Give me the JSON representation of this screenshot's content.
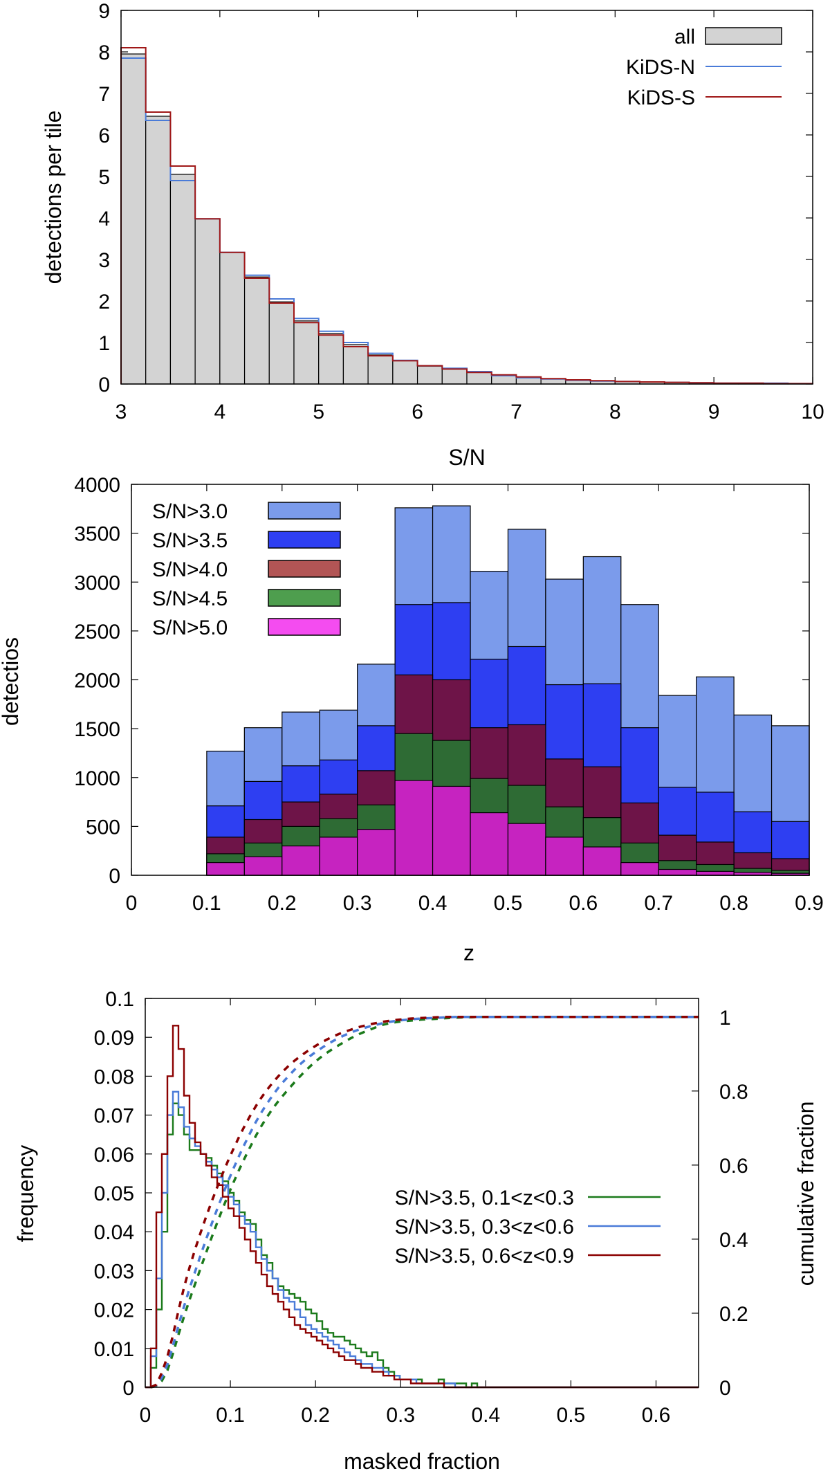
{
  "chart_data": [
    {
      "type": "bar",
      "panel": "top",
      "xlabel": "S/N",
      "ylabel": "detections per tile",
      "xlim": [
        3,
        10
      ],
      "ylim": [
        0,
        9
      ],
      "xticks": [
        "3",
        "4",
        "5",
        "6",
        "7",
        "8",
        "9",
        "10"
      ],
      "yticks": [
        "0",
        "1",
        "2",
        "3",
        "4",
        "5",
        "6",
        "7",
        "8",
        "9"
      ],
      "bin_width": 0.25,
      "bin_start": 3.0,
      "legend": {
        "placement": "top-right",
        "entries": [
          "all",
          "KiDS-N",
          "KiDS-S"
        ]
      },
      "series": [
        {
          "name": "all",
          "color": "#d3d3d3",
          "values": [
            7.95,
            6.45,
            5.05,
            3.98,
            3.17,
            2.58,
            1.98,
            1.52,
            1.22,
            0.95,
            0.7,
            0.56,
            0.43,
            0.37,
            0.29,
            0.2,
            0.16,
            0.12,
            0.09,
            0.07,
            0.06,
            0.05,
            0.04,
            0.03,
            0.02,
            0.02,
            0.02,
            0.01
          ]
        },
        {
          "name": "KiDS-N",
          "color": "#4a7bd8",
          "values": [
            7.85,
            6.35,
            4.9,
            3.98,
            3.17,
            2.62,
            2.05,
            1.58,
            1.27,
            1.0,
            0.74,
            0.57,
            0.44,
            0.38,
            0.3,
            0.2,
            0.15,
            0.12,
            0.09,
            0.07,
            0.06,
            0.05,
            0.04,
            0.03,
            0.02,
            0.02,
            0.02,
            0.01
          ]
        },
        {
          "name": "KiDS-S",
          "color": "#a01818",
          "values": [
            8.1,
            6.55,
            5.25,
            3.98,
            3.17,
            2.55,
            1.95,
            1.48,
            1.18,
            0.9,
            0.68,
            0.56,
            0.44,
            0.36,
            0.28,
            0.22,
            0.17,
            0.13,
            0.1,
            0.08,
            0.06,
            0.05,
            0.04,
            0.03,
            0.02,
            0.02,
            0.01,
            0.01
          ]
        }
      ]
    },
    {
      "type": "bar",
      "panel": "middle",
      "xlabel": "z",
      "ylabel": "detectios",
      "xlim": [
        0,
        0.9
      ],
      "ylim": [
        0,
        4000
      ],
      "xticks": [
        "0",
        "0.1",
        "0.2",
        "0.3",
        "0.4",
        "0.5",
        "0.6",
        "0.7",
        "0.8",
        "0.9"
      ],
      "yticks": [
        "0",
        "500",
        "1000",
        "1500",
        "2000",
        "2500",
        "3000",
        "3500",
        "4000"
      ],
      "bin_width": 0.05,
      "bin_start": 0.1,
      "legend": {
        "placement": "top-left"
      },
      "series": [
        {
          "name": "S/N>3.0",
          "color": "#7b9beb",
          "values": [
            1270,
            1510,
            1670,
            1690,
            2160,
            3760,
            3780,
            3110,
            3540,
            3030,
            3260,
            2770,
            1840,
            2030,
            1640,
            1530
          ]
        },
        {
          "name": "S/N>3.5",
          "color": "#2e3ff2",
          "values": [
            710,
            960,
            1120,
            1180,
            1530,
            2770,
            2790,
            2210,
            2340,
            1950,
            1960,
            1510,
            900,
            850,
            650,
            550
          ]
        },
        {
          "name": "S/N>4.0",
          "color": "#b25555",
          "values": [
            390,
            570,
            750,
            830,
            1070,
            2050,
            2000,
            1510,
            1540,
            1190,
            1110,
            740,
            410,
            340,
            230,
            170
          ]
        },
        {
          "name": "S/N>4.5",
          "color": "#4e9e4e",
          "values": [
            220,
            330,
            500,
            580,
            720,
            1450,
            1380,
            990,
            920,
            700,
            590,
            330,
            150,
            110,
            70,
            50
          ]
        },
        {
          "name": "S/N>5.0",
          "color": "#f44cf0",
          "values": [
            130,
            190,
            300,
            390,
            470,
            970,
            910,
            640,
            530,
            390,
            290,
            130,
            60,
            40,
            30,
            20
          ]
        }
      ],
      "overlap_colors": [
        "#7b9beb",
        "#2e3ff2",
        "#6e1448",
        "#2e6b34",
        "#c623c0"
      ]
    },
    {
      "type": "line",
      "panel": "bottom",
      "xlabel": "masked fraction",
      "ylabel": "frequency",
      "y2label": "cumulative fraction",
      "xlim": [
        0,
        0.65
      ],
      "ylim": [
        0,
        0.1
      ],
      "y2lim": [
        0,
        1.05
      ],
      "xticks": [
        "0",
        "0.1",
        "0.2",
        "0.3",
        "0.4",
        "0.5",
        "0.6"
      ],
      "yticks": [
        "0",
        "0.01",
        "0.02",
        "0.03",
        "0.04",
        "0.05",
        "0.06",
        "0.07",
        "0.08",
        "0.09",
        "0.1"
      ],
      "y2ticks": [
        "0",
        "0.2",
        "0.4",
        "0.6",
        "0.8",
        "1"
      ],
      "bin_width": 0.0065,
      "legend": {
        "placement": "middle-right"
      },
      "series": [
        {
          "name": "S/N>3.5, 0.1<z<0.3",
          "color": "#1b7a1b",
          "cum_scale": 48,
          "values": [
            0.0,
            0.005,
            0.02,
            0.04,
            0.065,
            0.073,
            0.07,
            0.065,
            0.061,
            0.061,
            0.06,
            0.059,
            0.057,
            0.055,
            0.053,
            0.05,
            0.048,
            0.045,
            0.043,
            0.042,
            0.038,
            0.034,
            0.032,
            0.028,
            0.026,
            0.025,
            0.024,
            0.023,
            0.022,
            0.02,
            0.019,
            0.017,
            0.015,
            0.014,
            0.013,
            0.013,
            0.012,
            0.011,
            0.01,
            0.009,
            0.008,
            0.009,
            0.007,
            0.005,
            0.004,
            0.003,
            0.002,
            0.002,
            0.002,
            0.002,
            0.001,
            0.001,
            0.001,
            0.002,
            0.001,
            0.001,
            0.001,
            0.001,
            0.0,
            0.001,
            0.0,
            0.0,
            0.0,
            0.0,
            0.0,
            0.0,
            0.0,
            0.0,
            0.0,
            0.0,
            0.0,
            0.0,
            0.0,
            0.0,
            0.0,
            0.0,
            0.0,
            0.0,
            0.0,
            0.0,
            0.0,
            0.0,
            0.0,
            0.0,
            0.0,
            0.0,
            0.0,
            0.0,
            0.0,
            0.0,
            0.0,
            0.0,
            0.0,
            0.0,
            0.0,
            0.0,
            0.0,
            0.0,
            0.0,
            0.0
          ]
        },
        {
          "name": "S/N>3.5, 0.3<z<0.6",
          "color": "#4a7bd8",
          "cum_scale": 46,
          "values": [
            0.0,
            0.008,
            0.028,
            0.05,
            0.07,
            0.076,
            0.072,
            0.067,
            0.064,
            0.062,
            0.06,
            0.058,
            0.056,
            0.054,
            0.052,
            0.049,
            0.047,
            0.044,
            0.042,
            0.04,
            0.036,
            0.033,
            0.03,
            0.028,
            0.025,
            0.023,
            0.022,
            0.02,
            0.018,
            0.016,
            0.015,
            0.014,
            0.013,
            0.012,
            0.011,
            0.01,
            0.009,
            0.008,
            0.007,
            0.006,
            0.006,
            0.005,
            0.005,
            0.004,
            0.003,
            0.003,
            0.002,
            0.002,
            0.002,
            0.001,
            0.001,
            0.001,
            0.001,
            0.001,
            0.001,
            0.001,
            0.0,
            0.0,
            0.0,
            0.0,
            0.0,
            0.0,
            0.0,
            0.0,
            0.0,
            0.0,
            0.0,
            0.0,
            0.0,
            0.0,
            0.0,
            0.0,
            0.0,
            0.0,
            0.0,
            0.0,
            0.0,
            0.0,
            0.0,
            0.0,
            0.0,
            0.0,
            0.0,
            0.0,
            0.0,
            0.0,
            0.0,
            0.0,
            0.0,
            0.0,
            0.0,
            0.0,
            0.0,
            0.0,
            0.0,
            0.0,
            0.0,
            0.0,
            0.0,
            0.0
          ]
        },
        {
          "name": "S/N>3.5, 0.6<z<0.9",
          "color": "#8b0000",
          "cum_scale": 40,
          "values": [
            0.0,
            0.01,
            0.045,
            0.06,
            0.08,
            0.093,
            0.087,
            0.075,
            0.068,
            0.063,
            0.06,
            0.057,
            0.054,
            0.052,
            0.049,
            0.046,
            0.044,
            0.041,
            0.038,
            0.035,
            0.032,
            0.029,
            0.026,
            0.024,
            0.022,
            0.02,
            0.018,
            0.016,
            0.015,
            0.014,
            0.013,
            0.012,
            0.011,
            0.01,
            0.009,
            0.008,
            0.007,
            0.007,
            0.006,
            0.005,
            0.005,
            0.004,
            0.004,
            0.003,
            0.003,
            0.002,
            0.002,
            0.002,
            0.001,
            0.001,
            0.001,
            0.001,
            0.001,
            0.001,
            0.0,
            0.0,
            0.0,
            0.0,
            0.0,
            0.0,
            0.0,
            0.0,
            0.0,
            0.0,
            0.0,
            0.0,
            0.0,
            0.0,
            0.0,
            0.0,
            0.0,
            0.0,
            0.0,
            0.0,
            0.0,
            0.0,
            0.0,
            0.0,
            0.0,
            0.0,
            0.0,
            0.0,
            0.0,
            0.0,
            0.0,
            0.0,
            0.0,
            0.0,
            0.0,
            0.0,
            0.0,
            0.0,
            0.0,
            0.0,
            0.0,
            0.0,
            0.0,
            0.0,
            0.0,
            0.0
          ]
        }
      ]
    }
  ]
}
